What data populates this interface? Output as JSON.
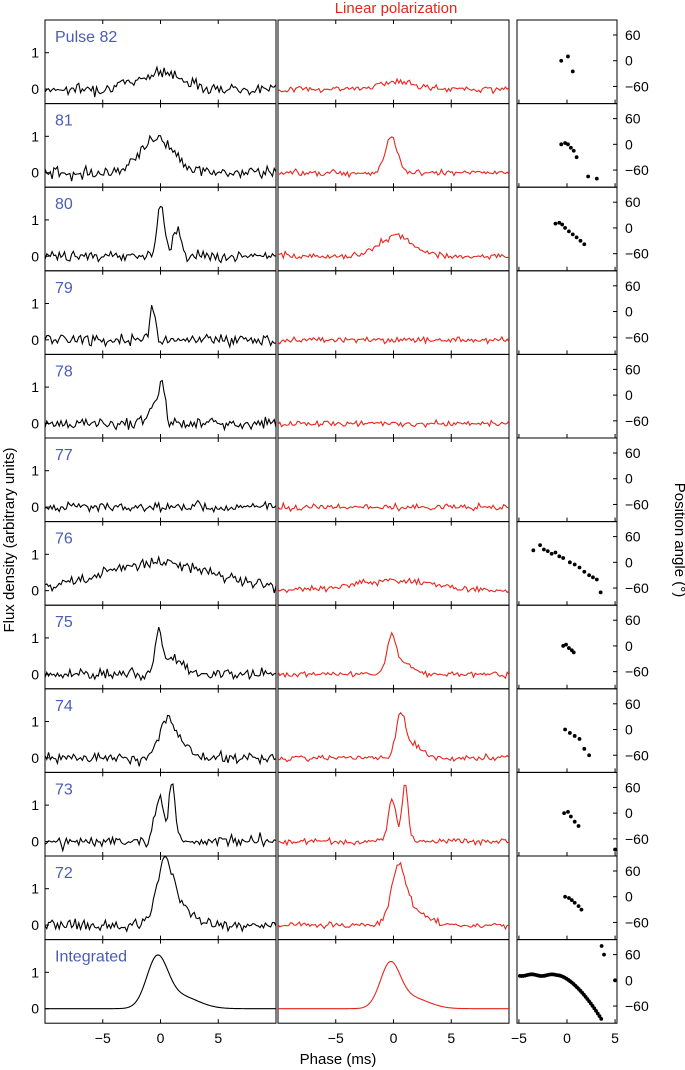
{
  "titles": {
    "linear_column": "Linear polarization",
    "ylabel_left": "Flux density (arbitrary units)",
    "ylabel_right": "Position angle (°)",
    "xlabel": "Phase (ms)"
  },
  "colors": {
    "total": "#000000",
    "linear": "#e8251d",
    "panel_label": "#4b5cb5",
    "axis": "#000000"
  },
  "chart_data": {
    "type": "line",
    "layout": "grid of 12 rows × 3 columns: total intensity, linear polarization, position angle",
    "flux_ylim": [
      -0.4,
      1.9
    ],
    "flux_yticks": [
      0,
      1
    ],
    "phase_xlim": [
      -10,
      10
    ],
    "phase_xticks": [
      -5,
      0,
      5
    ],
    "pa_xlim": [
      -5.2,
      5.2
    ],
    "pa_xticks": [
      -5,
      0,
      5
    ],
    "pa_ylim": [
      -100,
      95
    ],
    "pa_yticks": [
      60,
      0,
      -60
    ],
    "pulses": [
      {
        "label": "Pulse 82",
        "total": {
          "noise": 0.15,
          "baseline": 0,
          "components": [
            {
              "center": 0,
              "width": 2.0,
              "amp": 0.45
            }
          ]
        },
        "linear": {
          "noise": 0.08,
          "baseline": 0,
          "components": [
            {
              "center": 0.2,
              "width": 1.5,
              "amp": 0.2
            }
          ]
        },
        "position_angle": [
          [
            -0.6,
            0
          ],
          [
            0.1,
            10
          ],
          [
            0.6,
            -25
          ]
        ]
      },
      {
        "label": "81",
        "total": {
          "noise": 0.15,
          "baseline": 0,
          "components": [
            {
              "center": -0.3,
              "width": 1.5,
              "amp": 0.95
            }
          ]
        },
        "linear": {
          "noise": 0.08,
          "baseline": 0,
          "components": [
            {
              "center": -0.2,
              "width": 0.5,
              "amp": 1.0
            }
          ]
        },
        "position_angle": [
          [
            -0.6,
            0
          ],
          [
            -0.2,
            3
          ],
          [
            0.1,
            0
          ],
          [
            0.4,
            -8
          ],
          [
            0.7,
            -15
          ],
          [
            1.0,
            -30
          ],
          [
            2.2,
            -75
          ],
          [
            3.1,
            -80
          ]
        ]
      },
      {
        "label": "80",
        "total": {
          "noise": 0.15,
          "baseline": 0,
          "components": [
            {
              "center": 0,
              "width": 0.3,
              "amp": 1.5
            },
            {
              "center": 1.4,
              "width": 0.4,
              "amp": 0.7
            }
          ]
        },
        "linear": {
          "noise": 0.08,
          "baseline": 0,
          "components": [
            {
              "center": 0.2,
              "width": 1.5,
              "amp": 0.55
            }
          ]
        },
        "position_angle": [
          [
            -1.2,
            10
          ],
          [
            -0.8,
            12
          ],
          [
            -0.5,
            8
          ],
          [
            -0.2,
            0
          ],
          [
            0.2,
            -8
          ],
          [
            0.6,
            -15
          ],
          [
            1.0,
            -22
          ],
          [
            1.4,
            -30
          ],
          [
            1.8,
            -38
          ]
        ]
      },
      {
        "label": "79",
        "total": {
          "noise": 0.15,
          "baseline": 0,
          "components": [
            {
              "center": -0.7,
              "width": 0.25,
              "amp": 0.8
            }
          ]
        },
        "linear": {
          "noise": 0.08,
          "baseline": 0,
          "components": []
        },
        "position_angle": []
      },
      {
        "label": "78",
        "total": {
          "noise": 0.15,
          "baseline": 0,
          "components": [
            {
              "center": 0.1,
              "width": 0.3,
              "amp": 1.0
            },
            {
              "center": -0.7,
              "width": 0.4,
              "amp": 0.5
            }
          ]
        },
        "linear": {
          "noise": 0.08,
          "baseline": 0,
          "components": []
        },
        "position_angle": []
      },
      {
        "label": "77",
        "total": {
          "noise": 0.12,
          "baseline": 0,
          "components": []
        },
        "linear": {
          "noise": 0.08,
          "baseline": 0,
          "components": []
        },
        "position_angle": []
      },
      {
        "label": "76",
        "total": {
          "noise": 0.15,
          "baseline": 0,
          "components": [
            {
              "center": 0,
              "width": 5,
              "amp": 0.75
            }
          ]
        },
        "linear": {
          "noise": 0.08,
          "baseline": 0,
          "components": [
            {
              "center": 0,
              "width": 3.5,
              "amp": 0.28
            }
          ]
        },
        "position_angle": [
          [
            -3.5,
            28
          ],
          [
            -2.8,
            40
          ],
          [
            -2.4,
            30
          ],
          [
            -2.0,
            26
          ],
          [
            -1.6,
            20
          ],
          [
            -1.2,
            23
          ],
          [
            -0.8,
            14
          ],
          [
            -0.4,
            10
          ],
          [
            0.3,
            0
          ],
          [
            0.8,
            -5
          ],
          [
            1.3,
            -12
          ],
          [
            1.8,
            -22
          ],
          [
            2.3,
            -30
          ],
          [
            2.7,
            -35
          ],
          [
            3.1,
            -40
          ],
          [
            3.5,
            -70
          ]
        ]
      },
      {
        "label": "75",
        "total": {
          "noise": 0.15,
          "baseline": 0,
          "components": [
            {
              "center": -0.2,
              "width": 0.3,
              "amp": 1.05
            },
            {
              "center": 0.9,
              "width": 0.8,
              "amp": 0.45
            }
          ]
        },
        "linear": {
          "noise": 0.08,
          "baseline": 0,
          "components": [
            {
              "center": -0.2,
              "width": 0.35,
              "amp": 0.95
            },
            {
              "center": 0.7,
              "width": 0.8,
              "amp": 0.35
            }
          ]
        },
        "position_angle": [
          [
            -0.4,
            0
          ],
          [
            -0.1,
            3
          ],
          [
            0.2,
            -5
          ],
          [
            0.5,
            -10
          ],
          [
            0.7,
            -15
          ]
        ]
      },
      {
        "label": "74",
        "total": {
          "noise": 0.15,
          "baseline": 0,
          "components": [
            {
              "center": 0.5,
              "width": 0.7,
              "amp": 0.95
            },
            {
              "center": 1.8,
              "width": 0.8,
              "amp": 0.4
            }
          ]
        },
        "linear": {
          "noise": 0.08,
          "baseline": 0,
          "components": [
            {
              "center": 0.6,
              "width": 0.4,
              "amp": 1.05
            },
            {
              "center": 1.6,
              "width": 0.8,
              "amp": 0.4
            }
          ]
        },
        "position_angle": [
          [
            -0.2,
            0
          ],
          [
            0.3,
            -8
          ],
          [
            0.8,
            -15
          ],
          [
            1.3,
            -22
          ],
          [
            1.8,
            -45
          ],
          [
            2.3,
            -60
          ]
        ]
      },
      {
        "label": "73",
        "total": {
          "noise": 0.15,
          "baseline": 0,
          "components": [
            {
              "center": -0.1,
              "width": 0.4,
              "amp": 1.3
            },
            {
              "center": 1.0,
              "width": 0.25,
              "amp": 1.7
            }
          ]
        },
        "linear": {
          "noise": 0.08,
          "baseline": 0,
          "components": [
            {
              "center": -0.1,
              "width": 0.35,
              "amp": 1.15
            },
            {
              "center": 1.0,
              "width": 0.25,
              "amp": 1.6
            }
          ]
        },
        "position_angle": [
          [
            -0.3,
            0
          ],
          [
            0.1,
            3
          ],
          [
            0.4,
            -8
          ],
          [
            0.8,
            -20
          ],
          [
            1.2,
            -30
          ],
          [
            5.0,
            -85
          ]
        ]
      },
      {
        "label": "72",
        "total": {
          "noise": 0.15,
          "baseline": 0,
          "components": [
            {
              "center": 0.4,
              "width": 0.7,
              "amp": 1.5
            },
            {
              "center": 1.5,
              "width": 1.2,
              "amp": 0.5
            }
          ]
        },
        "linear": {
          "noise": 0.08,
          "baseline": 0,
          "components": [
            {
              "center": 0.4,
              "width": 0.6,
              "amp": 1.35
            },
            {
              "center": 1.5,
              "width": 1.2,
              "amp": 0.45
            }
          ]
        },
        "position_angle": [
          [
            -0.2,
            0
          ],
          [
            0.2,
            -3
          ],
          [
            0.5,
            -8
          ],
          [
            0.8,
            -14
          ],
          [
            1.2,
            -22
          ],
          [
            1.5,
            -30
          ]
        ]
      },
      {
        "label": "Integrated",
        "total": {
          "noise": 0,
          "baseline": 0,
          "components": [
            {
              "center": -0.3,
              "width": 0.9,
              "amp": 1.3
            },
            {
              "center": 1.6,
              "width": 1.6,
              "amp": 0.35
            }
          ]
        },
        "linear": {
          "noise": 0,
          "baseline": 0,
          "components": [
            {
              "center": -0.3,
              "width": 0.85,
              "amp": 1.15
            },
            {
              "center": 1.5,
              "width": 1.5,
              "amp": 0.3
            }
          ]
        },
        "position_angle": "curve: ~+10 to +15 from -5 to -1 ms, then decreasing to ~-95 at +3.7 ms; outliers near (3.6,80), (3.9,60), (5.0,0)"
      }
    ]
  }
}
